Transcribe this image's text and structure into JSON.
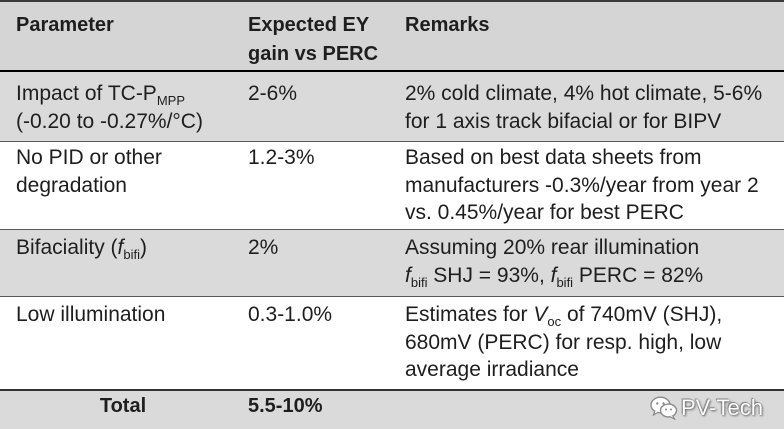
{
  "colors": {
    "header_bg": "#d5d5d5",
    "band_bg": "#dadada",
    "text": "#1e1e1e",
    "rule": "#000000"
  },
  "table": {
    "header": {
      "parameter": "Parameter",
      "gain": [
        "Expected EY",
        "gain vs PERC"
      ],
      "remarks": "Remarks"
    },
    "rows": [
      {
        "parameter": [
          [
            {
              "text": "Impact of TC-P"
            },
            {
              "sub": "MPP"
            }
          ],
          "(-0.20 to -0.27%/°C)"
        ],
        "gain": "2-6%",
        "remarks": [
          "2% cold climate, 4% hot climate, 5-6%",
          "for 1 axis track bifacial or for BIPV"
        ]
      },
      {
        "parameter": [
          "No PID or other",
          "degradation"
        ],
        "gain": "1.2-3%",
        "remarks": [
          "Based on best data sheets from",
          "manufacturers -0.3%/year from year 2",
          "vs. 0.45%/year for best PERC"
        ]
      },
      {
        "parameter": [
          [
            {
              "text": "Bifaciality ("
            },
            {
              "italic": "f"
            },
            {
              "sub": "bifi"
            },
            {
              "text": ")"
            }
          ]
        ],
        "gain": "2%",
        "remarks": [
          "Assuming 20% rear illumination",
          [
            {
              "italic": "f"
            },
            {
              "sub": "bifi"
            },
            {
              "text": " SHJ = 93%, "
            },
            {
              "italic": "f"
            },
            {
              "sub": "bifi"
            },
            {
              "text": " PERC = 82%"
            }
          ]
        ]
      },
      {
        "parameter": [
          "Low illumination"
        ],
        "gain": "0.3-1.0%",
        "remarks": [
          [
            {
              "text": "Estimates for "
            },
            {
              "italic": "V"
            },
            {
              "sub": "oc"
            },
            {
              "text": " of 740mV (SHJ),"
            }
          ],
          "680mV (PERC) for resp. high, low",
          "average irradiance"
        ]
      }
    ],
    "total": {
      "label": "Total",
      "gain": "5.5-10%"
    }
  },
  "watermark": {
    "icon": "wechat-icon",
    "text": "PV-Tech"
  }
}
